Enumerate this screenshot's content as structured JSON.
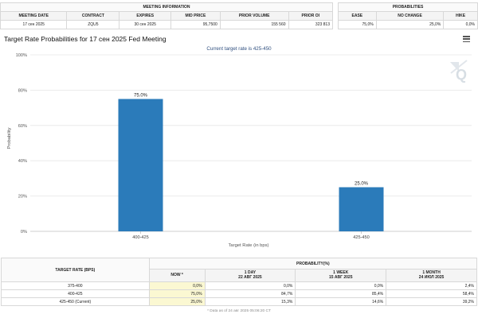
{
  "meeting_info": {
    "title": "MEETING INFORMATION",
    "headers": [
      "MEETING DATE",
      "CONTRACT",
      "EXPIRES",
      "MID PRICE",
      "PRIOR VOLUME",
      "PRIOR OI"
    ],
    "row": [
      "17 сен 2025",
      "ZQU5",
      "30 сен 2025",
      "95,7500",
      "155 560",
      "323 813"
    ]
  },
  "probabilities": {
    "title": "PROBABILITIES",
    "headers": [
      "EASE",
      "NO CHANGE",
      "HIKE"
    ],
    "row": [
      "75,0%",
      "25,0%",
      "0,0%"
    ]
  },
  "chart_title": "Target Rate Probabilities for 17 сен 2025 Fed Meeting",
  "menu_icon": "hamburger-menu-icon",
  "watermark_icon": "q-logo-icon",
  "chart_data": {
    "type": "bar",
    "title": "Current target rate is 425-450",
    "xlabel": "Target Rate (in bps)",
    "ylabel": "Probability",
    "ylim": [
      0,
      100
    ],
    "yticks": [
      "0%",
      "20%",
      "40%",
      "60%",
      "80%",
      "100%"
    ],
    "categories": [
      "400-425",
      "425-450"
    ],
    "values": [
      75.0,
      25.0
    ],
    "data_labels": [
      "75.0%",
      "25.0%"
    ],
    "bar_color": "#2b7bba",
    "grid": true,
    "legend": "none"
  },
  "rates_table": {
    "col_rate": "TARGET RATE (BPS)",
    "col_prob": "PROBABILITY(%)",
    "sub_now": "NOW *",
    "sub_cols": [
      {
        "line1": "1 DAY",
        "line2": "22 АВГ 2025"
      },
      {
        "line1": "1 WEEK",
        "line2": "15 АВГ 2025"
      },
      {
        "line1": "1 MONTH",
        "line2": "24 ИЮЛ 2025"
      }
    ],
    "rows": [
      {
        "rate": "375-400",
        "now": "0,0%",
        "day": "0,0%",
        "week": "0,0%",
        "month": "2,4%"
      },
      {
        "rate": "400-425",
        "now": "75,0%",
        "day": "84,7%",
        "week": "85,4%",
        "month": "58,4%"
      },
      {
        "rate": "425-450 (Current)",
        "now": "25,0%",
        "day": "15,3%",
        "week": "14,6%",
        "month": "39,2%"
      }
    ],
    "footnote": "* Data as of 24 авг 2025 05:06:20 CT"
  }
}
